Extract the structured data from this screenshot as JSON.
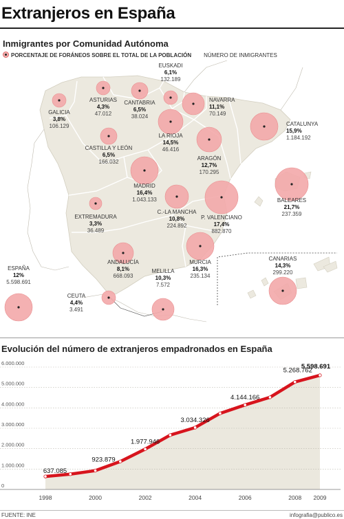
{
  "title": "Extranjeros en España",
  "map": {
    "subtitle": "Inmigrantes por Comunidad Autónoma",
    "legend_percent": "PORCENTAJE DE FORÁNEOS SOBRE EL TOTAL DE LA POBLACIÓN",
    "legend_count": "NÚMERO DE INMIGRANTES",
    "colors": {
      "land": "#ece9df",
      "border": "#ffffff",
      "bubble": "#f3a9aa",
      "bubble_stroke": "#e98f90"
    },
    "regions": [
      {
        "name": "EUSKADI",
        "pct": "6,1%",
        "count": "132.189"
      },
      {
        "name": "GALICIA",
        "pct": "3,8%",
        "count": "106.129"
      },
      {
        "name": "ASTURIAS",
        "pct": "4,3%",
        "count": "47.012"
      },
      {
        "name": "CANTABRIA",
        "pct": "6,5%",
        "count": "38.024"
      },
      {
        "name": "NAVARRA",
        "pct": "11,1%",
        "count": "70.149"
      },
      {
        "name": "LA RIOJA",
        "pct": "14,5%",
        "count": "46.416"
      },
      {
        "name": "CATALUNYA",
        "pct": "15,9%",
        "count": "1.184.192"
      },
      {
        "name": "CASTILLA Y LEÓN",
        "pct": "6,5%",
        "count": "166.032"
      },
      {
        "name": "ARAGÓN",
        "pct": "12,7%",
        "count": "170.295"
      },
      {
        "name": "MADRID",
        "pct": "16,4%",
        "count": "1.043.133"
      },
      {
        "name": "EXTREMADURA",
        "pct": "3,3%",
        "count": "36.489"
      },
      {
        "name": "C.-LA MANCHA",
        "pct": "10,8%",
        "count": "224.892"
      },
      {
        "name": "P. VALENCIANO",
        "pct": "17,4%",
        "count": "882.870"
      },
      {
        "name": "BALEARES",
        "pct": "21,7%",
        "count": "237.359"
      },
      {
        "name": "ANDALUCÍA",
        "pct": "8,1%",
        "count": "668.093"
      },
      {
        "name": "MURCIA",
        "pct": "16,3%",
        "count": "235.134"
      },
      {
        "name": "CANARIAS",
        "pct": "14,3%",
        "count": "299.220"
      },
      {
        "name": "ESPAÑA",
        "pct": "12%",
        "count": "5.598.691"
      },
      {
        "name": "CEUTA",
        "pct": "4,4%",
        "count": "3.491"
      },
      {
        "name": "MELILLA",
        "pct": "10,3%",
        "count": "7.572"
      }
    ]
  },
  "chart_title": "Evolución del número de extranjeros empadronados en España",
  "chart_data": {
    "type": "area",
    "title": "Evolución del número de extranjeros empadronados en España",
    "xlabel": "",
    "ylabel": "",
    "x": [
      1998,
      1999,
      2000,
      2001,
      2002,
      2003,
      2004,
      2005,
      2006,
      2007,
      2008,
      2009
    ],
    "values": [
      637085,
      748954,
      923879,
      1370657,
      1977946,
      2664168,
      3034326,
      3730610,
      4144166,
      4519554,
      5268762,
      5598691
    ],
    "ylim": [
      0,
      6000000
    ],
    "yticks": [
      0,
      1000000,
      2000000,
      3000000,
      4000000,
      5000000,
      6000000
    ],
    "ytick_labels": [
      "0",
      "1.000.000",
      "2.000.000",
      "3.000.000",
      "4.000.000",
      "5.000.000",
      "6.000.000"
    ],
    "xtick_labels": [
      "1998",
      "2000",
      "2002",
      "2004",
      "2006",
      "2008",
      "2009"
    ],
    "xtick_values": [
      1998,
      2000,
      2002,
      2004,
      2006,
      2008,
      2009
    ],
    "labeled_points": [
      {
        "x": 1998,
        "label": "637.085"
      },
      {
        "x": 2000,
        "label": "923.879"
      },
      {
        "x": 2002,
        "label": "1.977.946"
      },
      {
        "x": 2004,
        "label": "3.034.326"
      },
      {
        "x": 2006,
        "label": "4.144.166"
      },
      {
        "x": 2008,
        "label": "5.268.762"
      },
      {
        "x": 2009,
        "label": "5.598.691"
      }
    ],
    "grid": true,
    "colors": {
      "line": "#d7141d",
      "area": "#ebe8de",
      "marker_fill": "#ffffff"
    }
  },
  "source": "FUENTE: INE",
  "credit": "infografia@publico.es"
}
